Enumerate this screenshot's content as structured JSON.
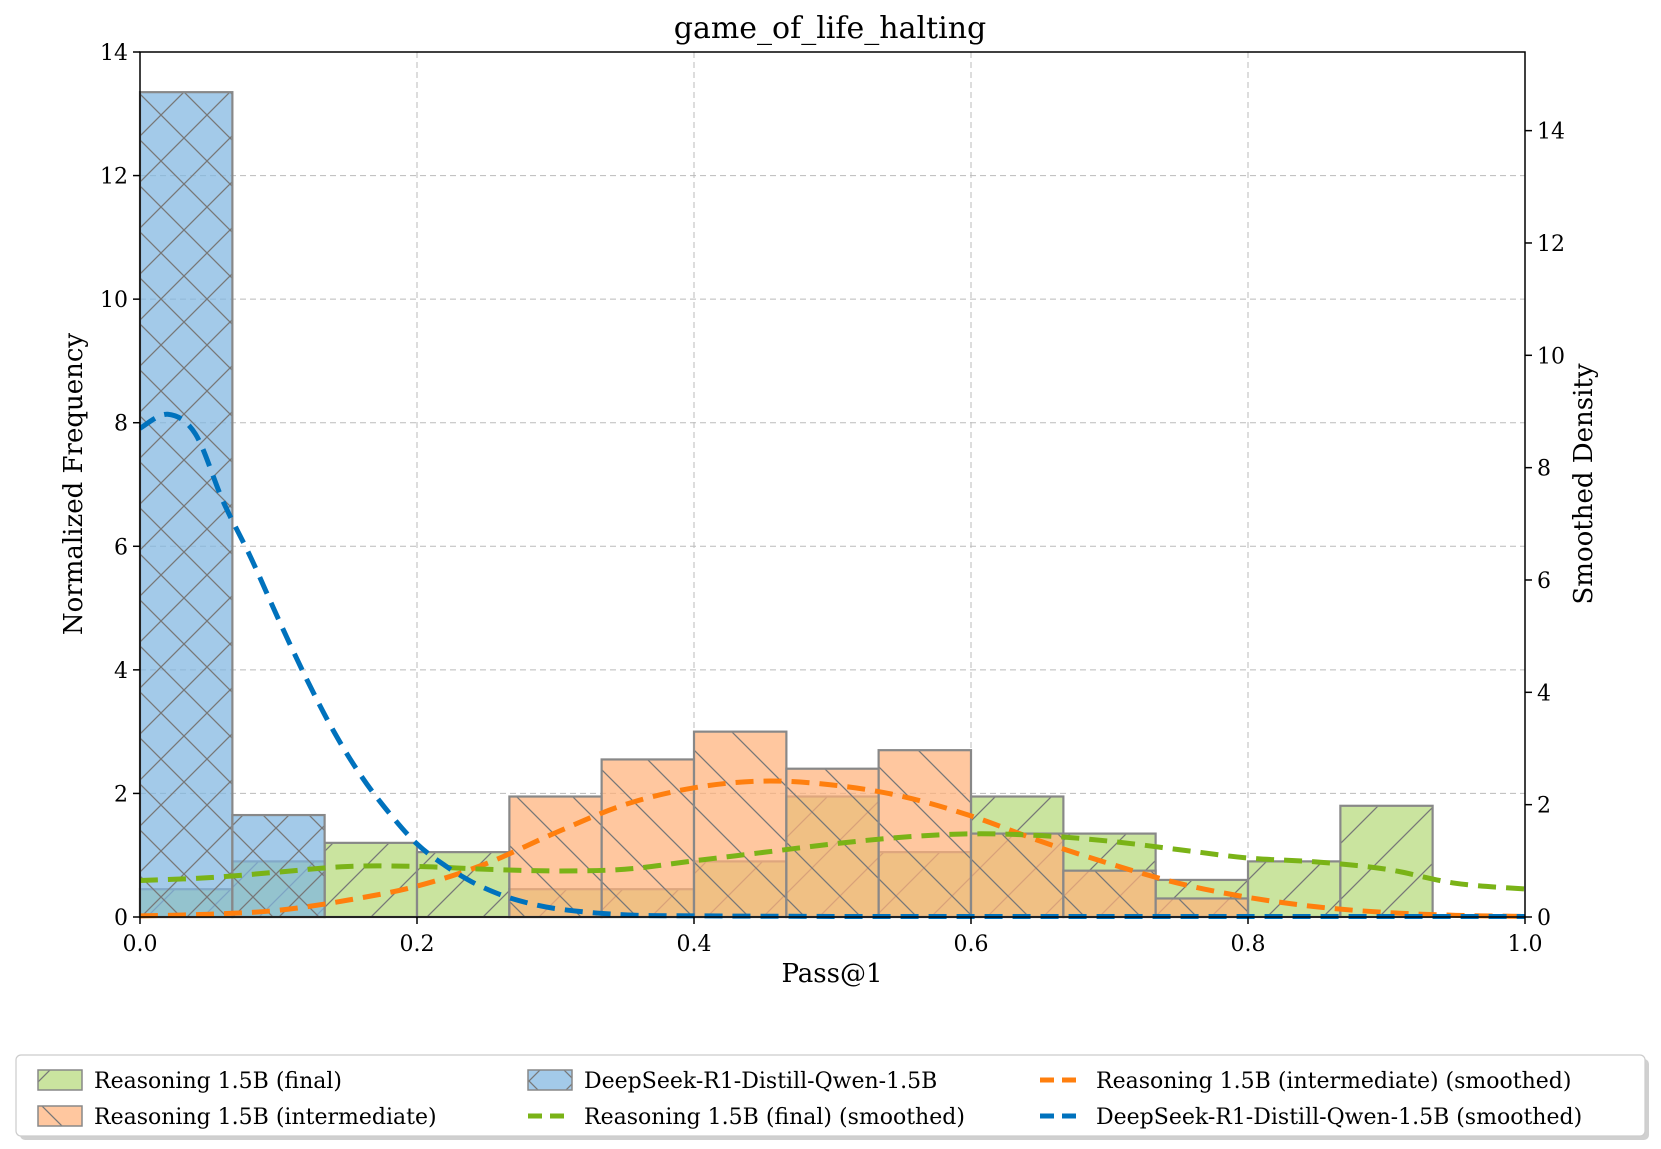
{
  "chart_data": {
    "type": "bar",
    "title": "game_of_life_halting",
    "xlabel": "Pass@1",
    "ylabel": "Normalized Frequency",
    "ylabel_right": "Smoothed Density",
    "xlim": [
      0.0,
      1.0
    ],
    "ylim": [
      0,
      14
    ],
    "ylim_right": [
      0,
      15.4
    ],
    "grid": true,
    "legend_position": "bottom",
    "x_ticks": [
      "0.0",
      "0.2",
      "0.4",
      "0.6",
      "0.8",
      "1.0"
    ],
    "x_tick_values": [
      0.0,
      0.2,
      0.4,
      0.6,
      0.8,
      1.0
    ],
    "y_ticks": [
      "0",
      "2",
      "4",
      "6",
      "8",
      "10",
      "12",
      "14"
    ],
    "y_tick_values": [
      0,
      2,
      4,
      6,
      8,
      10,
      12,
      14
    ],
    "y_right_ticks": [
      "0",
      "2",
      "4",
      "6",
      "8",
      "10",
      "12",
      "14"
    ],
    "y_right_tick_values": [
      0,
      2,
      4,
      6,
      8,
      10,
      12,
      14
    ],
    "bin_edges": [
      0.0,
      0.0667,
      0.1333,
      0.2,
      0.2667,
      0.3333,
      0.4,
      0.4667,
      0.5333,
      0.6,
      0.6667,
      0.7333,
      0.8,
      0.8667,
      0.9333,
      1.0
    ],
    "histograms": [
      {
        "name": "Reasoning 1.5B (final)",
        "color": "#b5d97a",
        "hatch": "/",
        "values": [
          0.45,
          0.9,
          1.2,
          1.05,
          0.45,
          0.45,
          0.9,
          1.95,
          1.05,
          1.95,
          1.35,
          0.6,
          0.9,
          1.8,
          0
        ]
      },
      {
        "name": "Reasoning 1.5B (intermediate)",
        "color": "#ffb27a",
        "hatch": "\\",
        "values": [
          0,
          0,
          0,
          0,
          1.95,
          2.55,
          3.0,
          2.4,
          2.7,
          1.35,
          0.75,
          0.3,
          0,
          0,
          0
        ]
      },
      {
        "name": "DeepSeek-R1-Distill-Qwen-1.5B",
        "color": "#80b6e0",
        "hatch": "x",
        "values": [
          13.35,
          1.65,
          0,
          0,
          0,
          0,
          0,
          0,
          0,
          0,
          0,
          0,
          0,
          0,
          0
        ]
      }
    ],
    "smoothed": [
      {
        "name": "Reasoning 1.5B (intermediate) (smoothed)",
        "color": "#ff7f0e",
        "x": [
          0.0,
          0.05,
          0.1,
          0.15,
          0.2,
          0.25,
          0.3,
          0.35,
          0.4,
          0.45,
          0.5,
          0.55,
          0.6,
          0.65,
          0.7,
          0.75,
          0.8,
          0.85,
          0.9,
          0.95,
          1.0
        ],
        "y": [
          0.02,
          0.05,
          0.12,
          0.3,
          0.55,
          0.95,
          1.5,
          2.0,
          2.3,
          2.42,
          2.35,
          2.15,
          1.8,
          1.35,
          0.95,
          0.6,
          0.35,
          0.18,
          0.08,
          0.03,
          0.01
        ]
      },
      {
        "name": "Reasoning 1.5B (final) (smoothed)",
        "color": "#7ab317",
        "x": [
          0.0,
          0.05,
          0.1,
          0.15,
          0.2,
          0.25,
          0.3,
          0.35,
          0.4,
          0.45,
          0.5,
          0.55,
          0.6,
          0.65,
          0.7,
          0.75,
          0.8,
          0.85,
          0.9,
          0.95,
          1.0
        ],
        "y": [
          0.65,
          0.7,
          0.8,
          0.9,
          0.9,
          0.85,
          0.82,
          0.85,
          1.0,
          1.15,
          1.3,
          1.42,
          1.48,
          1.45,
          1.35,
          1.2,
          1.05,
          0.98,
          0.85,
          0.6,
          0.5
        ]
      },
      {
        "name": "DeepSeek-R1-Distill-Qwen-1.5B (smoothed)",
        "color": "#0072bd",
        "x": [
          0.0,
          0.02,
          0.04,
          0.06,
          0.08,
          0.1,
          0.12,
          0.14,
          0.16,
          0.18,
          0.2,
          0.22,
          0.24,
          0.26,
          0.28,
          0.3,
          0.33,
          0.36,
          0.4,
          0.5,
          0.6,
          0.7,
          0.8,
          0.9,
          1.0
        ],
        "y": [
          8.7,
          8.95,
          8.6,
          7.4,
          6.4,
          5.3,
          4.25,
          3.3,
          2.5,
          1.85,
          1.3,
          0.92,
          0.62,
          0.4,
          0.25,
          0.15,
          0.07,
          0.03,
          0.02,
          0.01,
          0.01,
          0.01,
          0.01,
          0.01,
          0.01
        ]
      }
    ],
    "legend_entries": [
      "Reasoning 1.5B (final)",
      "Reasoning 1.5B (intermediate)",
      "DeepSeek-R1-Distill-Qwen-1.5B",
      "Reasoning 1.5B (final) (smoothed)",
      "Reasoning 1.5B (intermediate) (smoothed)",
      "DeepSeek-R1-Distill-Qwen-1.5B (smoothed)"
    ]
  }
}
